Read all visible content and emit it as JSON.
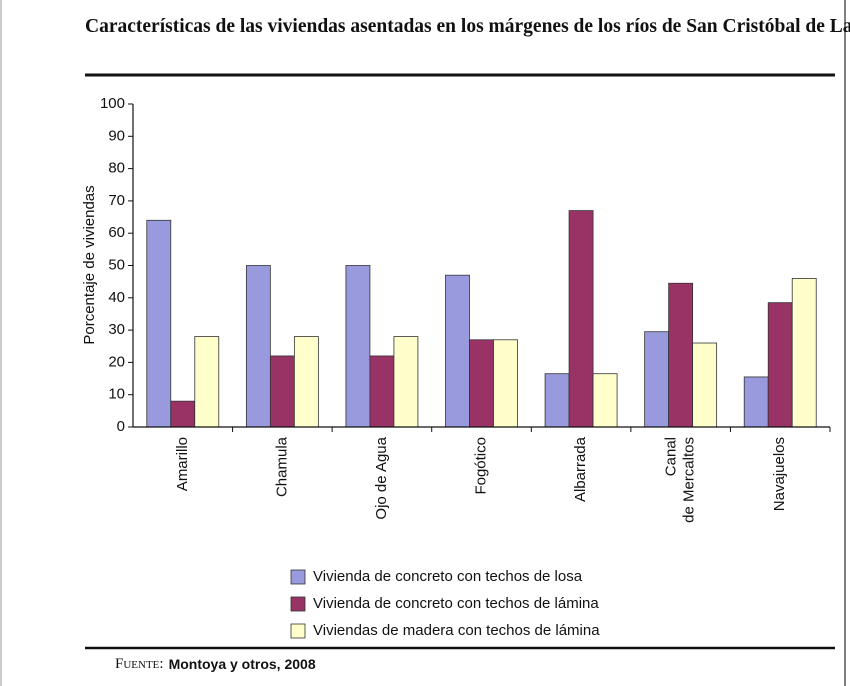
{
  "chart_data": {
    "type": "bar",
    "title": "Características de las viviendas asentadas en los márgenes de los ríos de San Cristóbal de Las Casas",
    "y_label": "Porcentaje de viviendas",
    "categories": [
      "Amarillo",
      "Chamula",
      "Ojo de Agua",
      "Fogótico",
      "Albarrada",
      "Canal\nde Mercaltos",
      "Navajuelos"
    ],
    "series": [
      {
        "name": "Vivienda de concreto con techos de losa",
        "color": "#9999dd",
        "values": [
          64,
          50,
          50,
          47,
          16.5,
          29.5,
          15.5
        ]
      },
      {
        "name": "Vivienda de concreto con techos de lámina",
        "color": "#993366",
        "values": [
          8,
          22,
          22,
          27,
          67,
          44.5,
          38.5
        ]
      },
      {
        "name": "Viviendas de madera con techos de lámina",
        "color": "#ffffcc",
        "values": [
          28,
          28,
          28,
          27,
          16.5,
          26,
          46
        ]
      }
    ],
    "ylim": [
      0,
      100
    ],
    "yticks": [
      0,
      10,
      20,
      30,
      40,
      50,
      60,
      70,
      80,
      90,
      100
    ],
    "grid": false,
    "legend": "bottom",
    "source_label": "Fuente:",
    "source": "Montoya y otros, 2008"
  }
}
